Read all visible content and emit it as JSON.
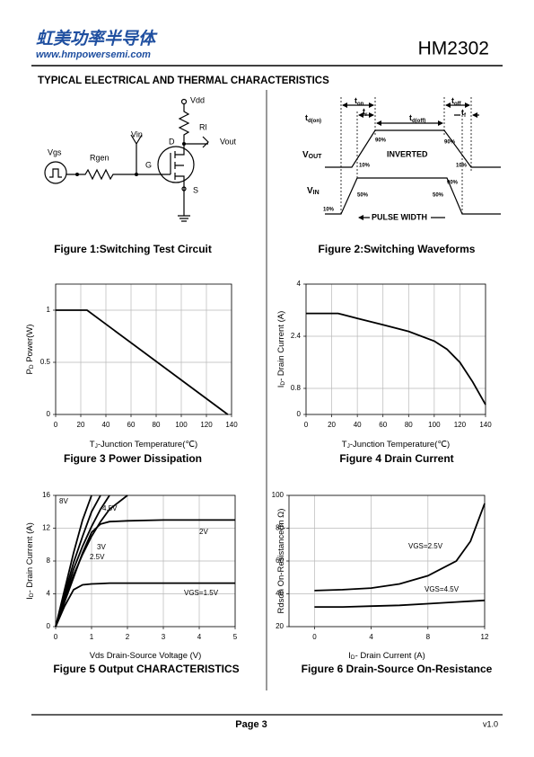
{
  "header": {
    "logo": "虹美功率半导体",
    "website": "www.hmpowersemi.com",
    "part": "HM2302"
  },
  "section_title": "TYPICAL ELECTRICAL AND THERMAL CHARACTERISTICS",
  "figure1": {
    "caption": "Figure 1:Switching Test Circuit",
    "labels": {
      "vdd": "Vdd",
      "rl": "Rl",
      "vin": "Vin",
      "vout": "Vout",
      "vgs": "Vgs",
      "rgen": "Rgen",
      "g": "G",
      "d": "D",
      "s": "S"
    }
  },
  "figure2": {
    "caption": "Figure 2:Switching Waveforms",
    "labels": {
      "t_on": [
        "t",
        "on"
      ],
      "t_r": [
        "t",
        "r"
      ],
      "t_d_on": [
        "t",
        "d(on)"
      ],
      "t_d_off": [
        "t",
        "d(off)"
      ],
      "t_off": [
        "t",
        "off"
      ],
      "t_f": [
        "t",
        "f"
      ],
      "v_out": [
        "V",
        "OUT"
      ],
      "v_in": [
        "V",
        "IN"
      ],
      "inverted": "INVERTED",
      "pulse_width": "PULSE WIDTH",
      "out_rise_90": "90%",
      "out_rise_10": "10%",
      "out_fall_90": "90%",
      "out_fall_10": "10%",
      "in_fall_90": "90%",
      "in_rise_50": "50%",
      "in_fall_50": "50%",
      "in_rise_10": "10%"
    }
  },
  "chart_data": [
    {
      "type": "line",
      "caption": "Figure 3 Power Dissipation",
      "x_label": [
        "T",
        "J",
        "-Junction Temperature(℃)"
      ],
      "y_label": [
        "P",
        "D",
        "  Power(W)"
      ],
      "x": [
        0,
        25,
        137
      ],
      "values": [
        1,
        1,
        0
      ],
      "color": "#000000",
      "xlim": [
        0,
        140
      ],
      "ylim": [
        0,
        1.25
      ],
      "xticks": [
        0,
        20,
        40,
        60,
        80,
        100,
        120,
        140
      ],
      "yticks": [
        0,
        0.5,
        1
      ],
      "grid": true
    },
    {
      "type": "line",
      "caption": "Figure 4 Drain Current",
      "x_label": [
        "T",
        "J",
        "-Junction Temperature(℃)"
      ],
      "y_label": [
        "I",
        "D",
        "- Drain Current (A)"
      ],
      "x": [
        0,
        25,
        40,
        60,
        80,
        100,
        110,
        120,
        130,
        140
      ],
      "values": [
        3.1,
        3.1,
        2.95,
        2.75,
        2.55,
        2.25,
        2.0,
        1.6,
        1.0,
        0.3
      ],
      "color": "#000000",
      "xlim": [
        0,
        140
      ],
      "ylim": [
        0,
        4
      ],
      "xticks": [
        0,
        20,
        40,
        60,
        80,
        100,
        120,
        140
      ],
      "yticks": [
        0,
        0.8,
        2.4,
        4
      ],
      "grid": true
    },
    {
      "type": "line",
      "caption": "Figure 5 Output CHARACTERISTICS",
      "x_label": [
        "Vds Drain-Source Voltage (V)"
      ],
      "y_label": [
        "I",
        "D",
        "- Drain Current (A)"
      ],
      "x": [
        0,
        0.25,
        0.5,
        0.75,
        1,
        1.25,
        1.5,
        2,
        3,
        4,
        5
      ],
      "series": [
        {
          "name": "8V",
          "color": "#000000",
          "values": [
            0,
            4.5,
            9,
            13,
            16,
            null,
            null,
            null,
            null,
            null,
            null
          ]
        },
        {
          "name": "4.5V",
          "color": "#000000",
          "values": [
            0,
            4,
            7.8,
            11,
            14,
            16,
            null,
            null,
            null,
            null,
            null
          ]
        },
        {
          "name": "3V",
          "color": "#000000",
          "values": [
            0,
            3.6,
            7,
            9.8,
            12.2,
            14.3,
            16,
            null,
            null,
            null,
            null
          ]
        },
        {
          "name": "2.5V",
          "color": "#000000",
          "values": [
            0,
            3.3,
            6.3,
            8.8,
            11,
            12.8,
            14.3,
            16,
            null,
            null,
            null
          ]
        },
        {
          "name": "2V",
          "color": "#000000",
          "values": [
            0,
            3,
            6,
            9,
            11.5,
            12.5,
            12.8,
            12.9,
            13,
            13,
            13
          ]
        },
        {
          "name": "VGS=1.5V",
          "color": "#000000",
          "values": [
            0,
            2.5,
            4.5,
            5.1,
            5.2,
            5.25,
            5.3,
            5.3,
            5.3,
            5.3,
            5.3
          ]
        }
      ],
      "xlim": [
        0,
        5
      ],
      "ylim": [
        0,
        16
      ],
      "xticks": [
        0,
        1,
        2,
        3,
        4,
        5
      ],
      "yticks": [
        0,
        4,
        8,
        12,
        16
      ],
      "grid": true
    },
    {
      "type": "line",
      "caption": "Figure 6 Drain-Source On-Resistance",
      "x_label": [
        "I",
        "D",
        "- Drain Current (A)"
      ],
      "y_label": [
        "Rdson On-Resistance(m Ω)"
      ],
      "x": [
        0,
        2,
        4,
        6,
        8,
        10,
        11,
        12
      ],
      "series": [
        {
          "name": "VGS=2.5V",
          "color": "#000000",
          "values": [
            42,
            42.5,
            43.5,
            46,
            51,
            60,
            72,
            95
          ]
        },
        {
          "name": "VGS=4.5V",
          "color": "#000000",
          "values": [
            32,
            32,
            32.5,
            33,
            34,
            35,
            35.5,
            36
          ]
        }
      ],
      "xlim": [
        -1.8,
        12
      ],
      "ylim": [
        20,
        100
      ],
      "xticks": [
        0,
        4,
        8,
        12
      ],
      "yticks": [
        20,
        40,
        60,
        80,
        100
      ],
      "grid": true
    }
  ],
  "footer": {
    "page": "Page 3",
    "version": "v1.0"
  }
}
